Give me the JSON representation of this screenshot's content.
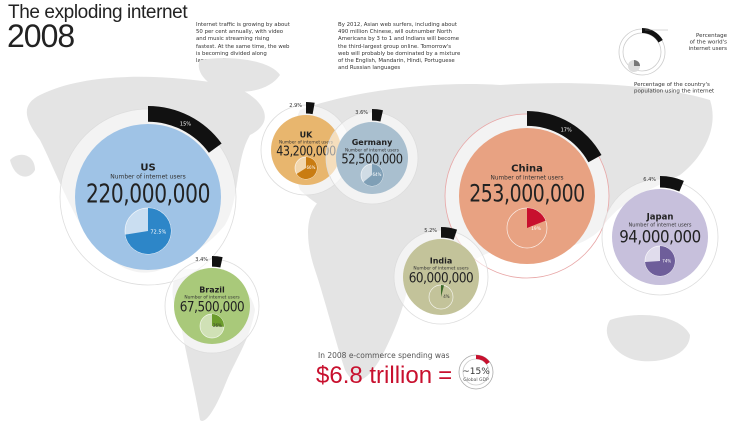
{
  "header": {
    "title": "The exploding internet",
    "year": "2008",
    "blurb_left": "Internet traffic is growing by about 50 per cent annually, with video and music streaming rising fastest. At the same time, the web is becoming divided along language lines",
    "blurb_right": "By 2012, Asian web surfers, including about 490 million Chinese, will outnumber North Americans by 3 to 1 and Indians will become the third-largest group online. Tomorrow's web will probably be dominated by a mixture of the English, Mandarin, Hindi, Portuguese and Russian languages"
  },
  "legend": {
    "outer_label": "Percentage of the world's internet users",
    "inner_label": "Percentage of the country's population using the internet"
  },
  "chart_data": {
    "type": "bubble-map",
    "subtitle_per_bubble": "Number of internet users",
    "countries": [
      {
        "name": "US",
        "users": "220,000,000",
        "users_value": 220000000,
        "world_share": 15,
        "world_share_label": "15%",
        "pop_share": 72.5,
        "pop_share_label": "72.5%",
        "color": "#9fc3e6",
        "accent": "#2d86c8"
      },
      {
        "name": "UK",
        "users": "43,200,000",
        "users_value": 43200000,
        "world_share": 2.9,
        "world_share_label": "2.9%",
        "pop_share": 66,
        "pop_share_label": "66%",
        "color": "#e8b66e",
        "accent": "#c97c12"
      },
      {
        "name": "Germany",
        "users": "52,500,000",
        "users_value": 52500000,
        "world_share": 3.6,
        "world_share_label": "3.6%",
        "pop_share": 64,
        "pop_share_label": "64%",
        "color": "#a9bfcf",
        "accent": "#7f9fb6"
      },
      {
        "name": "China",
        "users": "253,000,000",
        "users_value": 253000000,
        "world_share": 17,
        "world_share_label": "17%",
        "pop_share": 19,
        "pop_share_label": "19%",
        "color": "#e8a282",
        "accent": "#c8102e"
      },
      {
        "name": "Japan",
        "users": "94,000,000",
        "users_value": 94000000,
        "world_share": 6.4,
        "world_share_label": "6.4%",
        "pop_share": 74,
        "pop_share_label": "74%",
        "color": "#c7c0dc",
        "accent": "#6e5e9a"
      },
      {
        "name": "India",
        "users": "60,000,000",
        "users_value": 60000000,
        "world_share": 5.2,
        "world_share_label": "5.2%",
        "pop_share": 4,
        "pop_share_label": "4%",
        "color": "#c3c39a",
        "accent": "#3d6b2a"
      },
      {
        "name": "Brazil",
        "users": "67,500,000",
        "users_value": 67500000,
        "world_share": 3.4,
        "world_share_label": "3.4%",
        "pop_share": 26,
        "pop_share_label": "26%",
        "color": "#a9c97a",
        "accent": "#6c9c2c"
      }
    ]
  },
  "ecommerce": {
    "intro": "In 2008 e-commerce spending was",
    "amount": "$6.8 trillion",
    "equals": "=",
    "gdp_share": 15,
    "gdp_label": "~15%",
    "gdp_caption": "Global GDP",
    "color": "#c8102e"
  }
}
